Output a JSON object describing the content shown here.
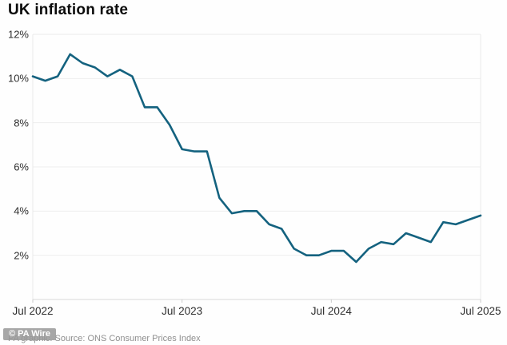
{
  "title": "UK inflation rate",
  "caption": "PA graphic. Source: ONS Consumer Prices Index",
  "credit_badge": "© PA Wire",
  "colors": {
    "line": "#14627f",
    "title_text": "#0b0b0b",
    "axis_text": "#2e2e2e",
    "grid": "#eeeeee",
    "plot_border": "#e9e9e9",
    "bottom_axis": "#d8d8d8",
    "tick": "#cccccc",
    "caption_text": "#8f8f8f",
    "badge_bg": "#989898",
    "badge_text": "#ffffff",
    "background": "#fefefe"
  },
  "chart_data": {
    "type": "line",
    "title": "UK inflation rate",
    "unit": "%",
    "xlabel": "",
    "ylabel": "",
    "ylim": [
      0,
      12
    ],
    "grid": "horizontal",
    "legend": "none",
    "x": [
      "Jul 2022",
      "Aug 2022",
      "Sep 2022",
      "Oct 2022",
      "Nov 2022",
      "Dec 2022",
      "Jan 2023",
      "Feb 2023",
      "Mar 2023",
      "Apr 2023",
      "May 2023",
      "Jun 2023",
      "Jul 2023",
      "Aug 2023",
      "Sep 2023",
      "Oct 2023",
      "Nov 2023",
      "Dec 2023",
      "Jan 2024",
      "Feb 2024",
      "Mar 2024",
      "Apr 2024",
      "May 2024",
      "Jun 2024",
      "Jul 2024",
      "Aug 2024",
      "Sep 2024",
      "Oct 2024",
      "Nov 2024",
      "Dec 2024",
      "Jan 2025",
      "Feb 2025",
      "Mar 2025",
      "Apr 2025",
      "May 2025",
      "Jun 2025",
      "Jul 2025"
    ],
    "values": [
      10.1,
      9.9,
      10.1,
      11.1,
      10.7,
      10.5,
      10.1,
      10.4,
      10.1,
      8.7,
      8.7,
      7.9,
      6.8,
      6.7,
      6.7,
      4.6,
      3.9,
      4.0,
      4.0,
      3.4,
      3.2,
      2.3,
      2.0,
      2.0,
      2.2,
      2.2,
      1.7,
      2.3,
      2.6,
      2.5,
      3.0,
      2.8,
      2.6,
      3.5,
      3.4,
      3.6,
      3.8
    ],
    "y_ticks": [
      2,
      4,
      6,
      8,
      10,
      12
    ],
    "y_tick_labels": [
      "2%",
      "4%",
      "6%",
      "8%",
      "10%",
      "12%"
    ],
    "x_tick_indices": [
      0,
      12,
      24,
      36
    ],
    "x_tick_labels": [
      "Jul 2022",
      "Jul 2023",
      "Jul 2024",
      "Jul 2025"
    ]
  }
}
